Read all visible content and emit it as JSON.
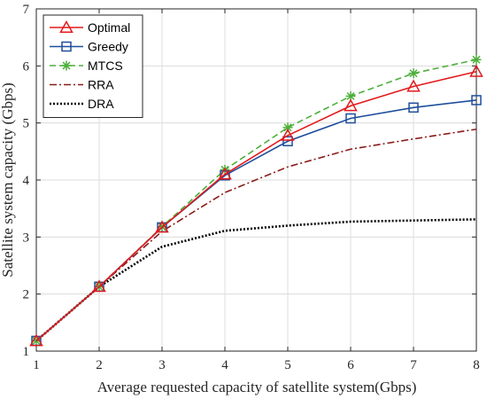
{
  "chart_data": {
    "type": "line",
    "title": "",
    "xlabel": "Average requested capacity of satellite system(Gbps)",
    "ylabel": "Satellite system capacity (Gbps)",
    "xlim": [
      1,
      8
    ],
    "ylim": [
      1,
      7
    ],
    "xticks": [
      "1",
      "2",
      "3",
      "4",
      "5",
      "6",
      "7",
      "8"
    ],
    "yticks": [
      "1",
      "2",
      "3",
      "4",
      "5",
      "6",
      "7"
    ],
    "grid": true,
    "legend_position": "top-left",
    "x": [
      1,
      2,
      3,
      4,
      5,
      6,
      7,
      8
    ],
    "series": [
      {
        "name": "Optimal",
        "values": [
          1.18,
          2.13,
          3.17,
          4.1,
          4.78,
          5.3,
          5.64,
          5.9
        ],
        "color": "#e31a1c",
        "style": "solid",
        "marker": "triangle"
      },
      {
        "name": "Greedy",
        "values": [
          1.18,
          2.13,
          3.17,
          4.08,
          4.68,
          5.08,
          5.27,
          5.4
        ],
        "color": "#1f4e9c",
        "style": "solid",
        "marker": "square"
      },
      {
        "name": "MTCS",
        "values": [
          1.18,
          2.13,
          3.18,
          4.18,
          4.92,
          5.47,
          5.87,
          6.11
        ],
        "color": "#4caf3a",
        "style": "dashed",
        "marker": "asterisk"
      },
      {
        "name": "RRA",
        "values": [
          1.18,
          2.13,
          3.1,
          3.78,
          4.23,
          4.54,
          4.72,
          4.89
        ],
        "color": "#8b1a1a",
        "style": "dashdot",
        "marker": "none"
      },
      {
        "name": "DRA",
        "values": [
          1.18,
          2.13,
          2.83,
          3.11,
          3.2,
          3.27,
          3.29,
          3.31
        ],
        "color": "#000000",
        "style": "dotted",
        "marker": "none"
      }
    ]
  }
}
